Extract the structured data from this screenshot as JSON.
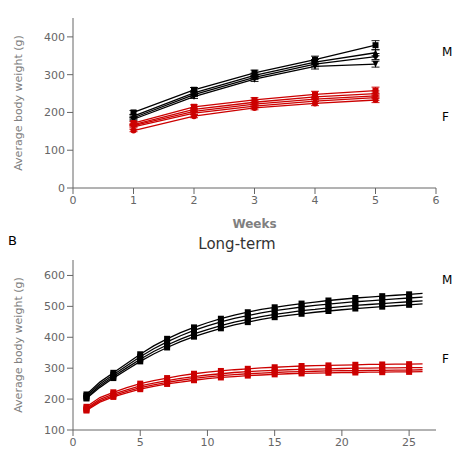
{
  "chart_data": [
    {
      "type": "line",
      "xlabel": "Weeks",
      "ylabel": "Average body weight (g)",
      "x": [
        1,
        2,
        3,
        4,
        5
      ],
      "xlim": [
        0,
        6
      ],
      "xticks": [
        0,
        1,
        2,
        3,
        4,
        5,
        6
      ],
      "ylim": [
        0,
        450
      ],
      "yticks": [
        0,
        100,
        200,
        300,
        400
      ],
      "grid": false,
      "annotations": [
        "M",
        "F"
      ],
      "series": [
        {
          "color": "#000000",
          "marker": "square",
          "values": [
            200,
            260,
            305,
            340,
            378
          ],
          "errors": [
            5,
            6,
            7,
            9,
            12
          ]
        },
        {
          "color": "#000000",
          "marker": "triangle_up",
          "values": [
            190,
            252,
            298,
            333,
            358
          ],
          "errors": [
            4,
            5,
            6,
            7,
            8
          ]
        },
        {
          "color": "#000000",
          "marker": "diamond",
          "values": [
            186,
            247,
            293,
            328,
            348
          ],
          "errors": [
            4,
            5,
            6,
            7,
            8
          ]
        },
        {
          "color": "#000000",
          "marker": "triangle_down",
          "values": [
            182,
            242,
            288,
            322,
            328
          ],
          "errors": [
            4,
            5,
            6,
            7,
            8
          ]
        },
        {
          "color": "#CC0000",
          "marker": "square",
          "values": [
            172,
            215,
            233,
            248,
            258
          ],
          "errors": [
            4,
            5,
            6,
            8,
            9
          ]
        },
        {
          "color": "#CC0000",
          "marker": "triangle_up",
          "values": [
            168,
            208,
            227,
            241,
            250
          ],
          "errors": [
            3,
            4,
            5,
            6,
            7
          ]
        },
        {
          "color": "#CC0000",
          "marker": "diamond",
          "values": [
            165,
            203,
            222,
            235,
            244
          ],
          "errors": [
            3,
            4,
            5,
            6,
            7
          ]
        },
        {
          "color": "#CC0000",
          "marker": "triangle_down",
          "values": [
            162,
            198,
            217,
            230,
            239
          ],
          "errors": [
            3,
            4,
            5,
            6,
            7
          ]
        },
        {
          "color": "#CC0000",
          "marker": "circle",
          "values": [
            152,
            190,
            212,
            224,
            233
          ],
          "errors": [
            3,
            4,
            5,
            6,
            7
          ]
        }
      ]
    },
    {
      "type": "line",
      "title": "Long-term",
      "ylabel": "Average body weight (g)",
      "x": [
        1,
        2,
        3,
        4,
        5,
        6,
        7,
        8,
        9,
        10,
        11,
        12,
        13,
        14,
        15,
        16,
        17,
        18,
        19,
        20,
        21,
        22,
        23,
        24,
        25,
        26
      ],
      "xlim": [
        0,
        27
      ],
      "xticks": [
        0,
        5,
        10,
        15,
        20,
        25
      ],
      "ylim": [
        100,
        650
      ],
      "yticks": [
        100,
        200,
        300,
        400,
        500,
        600
      ],
      "grid": false,
      "annotations": [
        "M",
        "F",
        "B"
      ],
      "series": [
        {
          "color": "#000000",
          "marker": "square",
          "values": [
            215,
            255,
            285,
            315,
            345,
            372,
            395,
            415,
            432,
            447,
            460,
            472,
            481,
            490,
            497,
            503,
            509,
            514,
            519,
            523,
            527,
            530,
            533,
            536,
            539,
            542
          ]
        },
        {
          "color": "#000000",
          "marker": "square",
          "values": [
            210,
            249,
            279,
            308,
            337,
            363,
            385,
            405,
            422,
            437,
            450,
            461,
            470,
            479,
            486,
            492,
            498,
            503,
            507,
            511,
            515,
            518,
            521,
            524,
            527,
            530
          ]
        },
        {
          "color": "#000000",
          "marker": "square",
          "values": [
            205,
            243,
            273,
            301,
            329,
            354,
            375,
            394,
            411,
            425,
            438,
            449,
            458,
            467,
            474,
            480,
            486,
            490,
            495,
            499,
            503,
            506,
            509,
            512,
            515,
            518
          ]
        },
        {
          "color": "#000000",
          "marker": "square",
          "values": [
            202,
            238,
            268,
            295,
            322,
            346,
            367,
            386,
            402,
            416,
            429,
            440,
            449,
            458,
            465,
            471,
            476,
            481,
            485,
            489,
            493,
            496,
            499,
            502,
            505,
            508
          ]
        },
        {
          "color": "#CC0000",
          "marker": "square",
          "values": [
            175,
            205,
            222,
            237,
            250,
            260,
            268,
            276,
            282,
            287,
            291,
            295,
            298,
            301,
            303,
            305,
            307,
            308,
            309,
            310,
            311,
            312,
            312,
            313,
            313,
            314
          ]
        },
        {
          "color": "#CC0000",
          "marker": "square",
          "values": [
            170,
            199,
            216,
            230,
            243,
            252,
            260,
            267,
            273,
            278,
            282,
            286,
            289,
            291,
            293,
            295,
            296,
            297,
            298,
            299,
            300,
            300,
            301,
            301,
            302,
            302
          ]
        },
        {
          "color": "#CC0000",
          "marker": "square",
          "values": [
            166,
            194,
            211,
            225,
            237,
            246,
            254,
            261,
            267,
            272,
            276,
            279,
            282,
            284,
            286,
            288,
            289,
            290,
            291,
            292,
            292,
            293,
            293,
            294,
            294,
            295
          ]
        },
        {
          "color": "#CC0000",
          "marker": "square",
          "values": [
            163,
            190,
            207,
            220,
            232,
            241,
            249,
            255,
            261,
            266,
            270,
            273,
            276,
            278,
            280,
            282,
            283,
            284,
            285,
            286,
            286,
            287,
            287,
            288,
            288,
            289
          ]
        }
      ]
    }
  ]
}
